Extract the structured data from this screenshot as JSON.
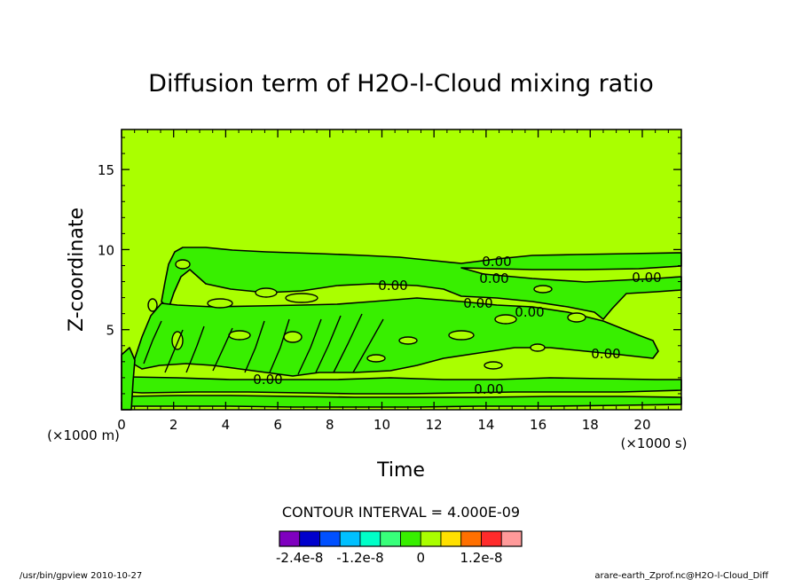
{
  "chart_data": {
    "type": "contour",
    "title": "Diffusion term of H2O-l-Cloud mixing ratio",
    "xlabel": "Time",
    "ylabel": "Z-coordinate",
    "x_unit": "(×1000 s)",
    "y_unit": "(×1000 m)",
    "xlim": [
      0,
      21.5
    ],
    "ylim": [
      0,
      17.5
    ],
    "x_ticks": [
      0,
      2,
      4,
      6,
      8,
      10,
      12,
      14,
      16,
      18,
      20
    ],
    "y_ticks": [
      5,
      10,
      15
    ],
    "contour_interval_text": "CONTOUR INTERVAL = 4.000E-09",
    "contour_labels": [
      "0.00",
      "0.00",
      "0.00",
      "0.00",
      "0.00",
      "0.00",
      "0.00",
      "0.00",
      "0.00"
    ],
    "background_color": "#aaff00",
    "colorbar": {
      "colors": [
        "#7f00bf",
        "#0000cc",
        "#0050ff",
        "#00c0ff",
        "#00ffc8",
        "#38ff7a",
        "#38ef00",
        "#aaff00",
        "#ffe000",
        "#ff7000",
        "#ff2b2b",
        "#ff9a9a"
      ],
      "tick_labels": [
        "-2.4e-8",
        "-1.2e-8",
        "0",
        "1.2e-8"
      ]
    }
  },
  "footer": {
    "left": "/usr/bin/gpview  2010-10-27",
    "right": "arare-earth_Zprof.nc@H2O-l-Cloud_Diff"
  }
}
